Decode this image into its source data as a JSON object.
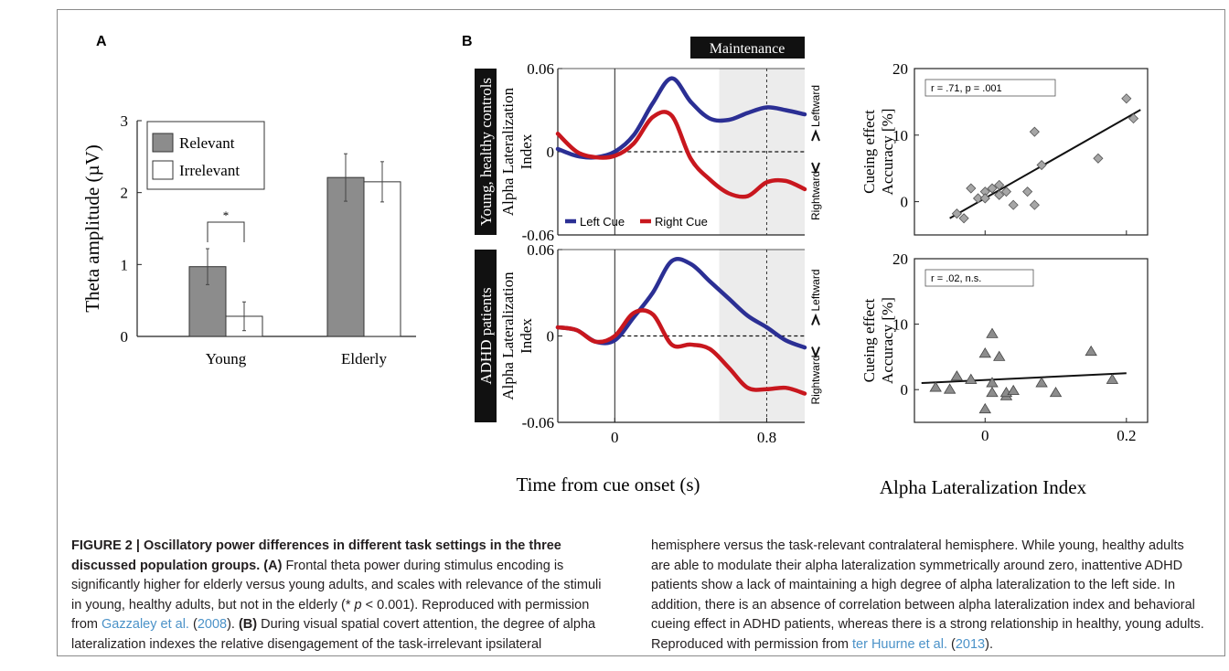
{
  "panel_a": {
    "label": "A",
    "chart_data": {
      "type": "bar",
      "categories": [
        "Young",
        "Elderly"
      ],
      "series": [
        {
          "name": "Relevant",
          "values": [
            0.97,
            2.21
          ],
          "errors": [
            0.25,
            0.33
          ],
          "color": "#8c8c8c"
        },
        {
          "name": "Irrelevant",
          "values": [
            0.28,
            2.15
          ],
          "errors": [
            0.2,
            0.28
          ],
          "color": "#ffffff"
        }
      ],
      "ylabel": "Theta amplitude (µV)",
      "ylim": [
        0,
        3
      ],
      "yticks": [
        "0",
        "1",
        "2",
        "3"
      ],
      "significance_marker": "*",
      "legend_position": "top-left"
    }
  },
  "panel_b": {
    "label": "B",
    "maintenance_label": "Maintenance",
    "xlabel": "Time from cue onset (s)",
    "xticks": [
      "0",
      "0.8"
    ],
    "yticks": [
      "0.06",
      "0",
      "-0.06"
    ],
    "ylabel": [
      "Alpha Lateralization",
      "Index"
    ],
    "right_labels": {
      "top": "Leftward",
      "bottom": "Rightward"
    },
    "legend": [
      "Left Cue",
      "Right Cue"
    ],
    "colors": {
      "left_cue": "#2b2f94",
      "right_cue": "#c8171e",
      "maintenance_shade": "#ececec"
    },
    "time_chart_data": {
      "type": "line",
      "x": [
        -0.3,
        -0.2,
        -0.1,
        0.0,
        0.1,
        0.2,
        0.3,
        0.4,
        0.5,
        0.6,
        0.7,
        0.8,
        0.9,
        1.0
      ],
      "xlim": [
        -0.3,
        1.0
      ],
      "ylim": [
        -0.06,
        0.06
      ],
      "maintenance_window": [
        0.55,
        1.0
      ],
      "groups": [
        {
          "name": "Young, healthy controls",
          "series": [
            {
              "name": "Left Cue",
              "values": [
                0.002,
                -0.003,
                -0.004,
                0.0,
                0.012,
                0.035,
                0.053,
                0.036,
                0.024,
                0.023,
                0.028,
                0.032,
                0.03,
                0.027
              ]
            },
            {
              "name": "Right Cue",
              "values": [
                0.013,
                0.0,
                -0.004,
                -0.003,
                0.006,
                0.025,
                0.026,
                -0.005,
                -0.02,
                -0.03,
                -0.032,
                -0.022,
                -0.021,
                -0.027
              ]
            }
          ]
        },
        {
          "name": "ADHD patients",
          "series": [
            {
              "name": "Left Cue",
              "values": [
                0.006,
                0.004,
                -0.004,
                -0.003,
                0.013,
                0.03,
                0.052,
                0.05,
                0.038,
                0.026,
                0.014,
                0.006,
                -0.003,
                -0.008
              ]
            },
            {
              "name": "Right Cue",
              "values": [
                0.006,
                0.004,
                -0.004,
                0.0,
                0.016,
                0.015,
                -0.006,
                -0.006,
                -0.009,
                -0.022,
                -0.036,
                -0.037,
                -0.036,
                -0.04
              ]
            }
          ]
        }
      ]
    },
    "scatter_chart_data": {
      "type": "scatter",
      "xlabel": "Alpha Lateralization Index",
      "xticks": [
        "0",
        "0.2"
      ],
      "xlim": [
        -0.1,
        0.23
      ],
      "ylabel": [
        "Cueing effect",
        "Accuracy [%]"
      ],
      "yticks": [
        "20",
        "10",
        "0"
      ],
      "ylim": [
        -5,
        20
      ],
      "plots": [
        {
          "annotation": "r = .71, p = .001",
          "points": [
            [
              -0.04,
              -1.8
            ],
            [
              -0.03,
              -2.5
            ],
            [
              -0.02,
              2.0
            ],
            [
              -0.01,
              0.5
            ],
            [
              0.0,
              1.5
            ],
            [
              0.0,
              0.5
            ],
            [
              0.01,
              2.0
            ],
            [
              0.02,
              1.0
            ],
            [
              0.02,
              2.5
            ],
            [
              0.03,
              1.5
            ],
            [
              0.04,
              -0.5
            ],
            [
              0.06,
              1.5
            ],
            [
              0.07,
              10.5
            ],
            [
              0.07,
              -0.5
            ],
            [
              0.08,
              5.5
            ],
            [
              0.16,
              6.5
            ],
            [
              0.2,
              15.5
            ],
            [
              0.21,
              12.5
            ]
          ],
          "fit": [
            [
              -0.05,
              -2.5
            ],
            [
              0.22,
              13.8
            ]
          ]
        },
        {
          "annotation": "r = .02, n.s.",
          "points": [
            [
              -0.07,
              0.3
            ],
            [
              -0.05,
              0.0
            ],
            [
              -0.04,
              2.0
            ],
            [
              -0.02,
              1.5
            ],
            [
              0.0,
              5.5
            ],
            [
              0.0,
              -3.0
            ],
            [
              0.01,
              8.5
            ],
            [
              0.01,
              1.0
            ],
            [
              0.01,
              -0.5
            ],
            [
              0.02,
              5.0
            ],
            [
              0.03,
              -1.0
            ],
            [
              0.03,
              -0.5
            ],
            [
              0.04,
              -0.2
            ],
            [
              0.08,
              1.0
            ],
            [
              0.1,
              -0.5
            ],
            [
              0.15,
              5.8
            ],
            [
              0.18,
              1.5
            ]
          ],
          "fit": [
            [
              -0.09,
              1.0
            ],
            [
              0.2,
              2.5
            ]
          ]
        }
      ]
    }
  },
  "caption": {
    "bold_title": "FIGURE 2 | Oscillatory power differences in different task settings in the three discussed population groups.",
    "a_label": "(A)",
    "a_text": " Frontal theta power during stimulus encoding is significantly higher for elderly versus young adults, and scales with relevance of the stimuli in young, healthy adults, but not in the elderly (* ",
    "p_symbol": "p",
    "a_text2": " < 0.001). Reproduced with permission from ",
    "ref1": "Gazzaley et al.",
    "ref1_year_open": " (",
    "ref1_year": "2008",
    "ref1_close": "). ",
    "b_label": "(B)",
    "b_text": " During visual spatial covert attention, the degree of alpha lateralization indexes the relative disengagement of the task-irrelevant ipsilateral",
    "right_text": "hemisphere versus the task-relevant contralateral hemisphere. While young, healthy adults are able to modulate their alpha lateralization symmetrically around zero, inattentive ADHD patients show a lack of maintaining a high degree of alpha lateralization to the left side. In addition, there is an absence of correlation between alpha lateralization index and behavioral cueing effect in ADHD patients, whereas there is a strong relationship in healthy, young adults. Reproduced with permission from ",
    "ref2": "ter Huurne et al.",
    "ref2_year_open": " (",
    "ref2_year": "2013",
    "ref2_close": ")."
  }
}
